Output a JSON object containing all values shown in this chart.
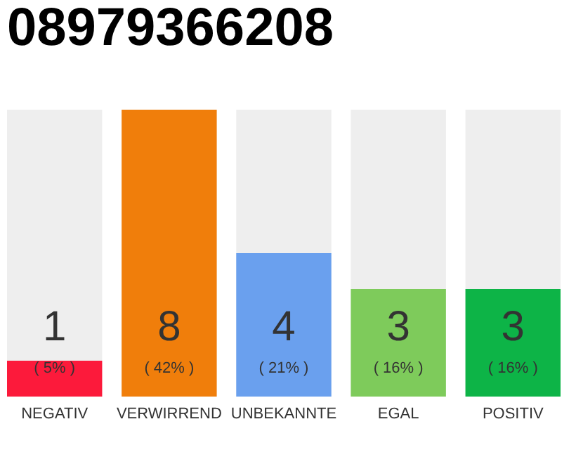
{
  "chart_data": {
    "type": "bar",
    "title": "08979366208",
    "categories": [
      "NEGATIV",
      "VERWIRREND",
      "UNBEKANNTE",
      "EGAL",
      "POSITIV"
    ],
    "values": [
      1,
      8,
      4,
      3,
      3
    ],
    "colors": [
      "#fc1a3b",
      "#f07e0b",
      "#6aa0ee",
      "#7ecb5b",
      "#0db447"
    ],
    "data_labels": true,
    "annotations": [
      "( 5% )",
      "( 42% )",
      "( 21% )",
      "( 16% )",
      "( 16% )"
    ],
    "ylim": [
      0,
      8
    ],
    "tick_labels": "x"
  }
}
